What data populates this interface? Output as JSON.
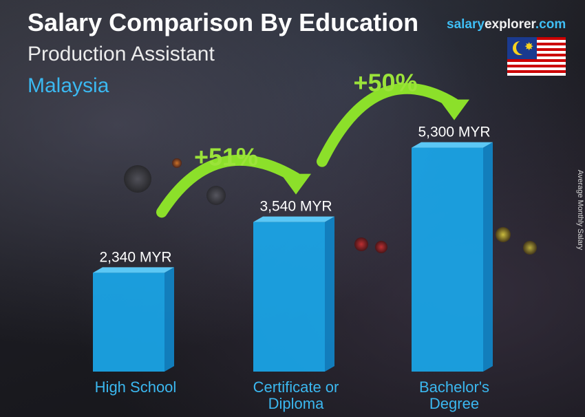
{
  "title": "Salary Comparison By Education",
  "subtitle": "Production Assistant",
  "country": "Malaysia",
  "brand": {
    "part1": "salary",
    "part2": "explorer",
    "part3": ".com"
  },
  "flag_icon": "malaysia-flag-icon",
  "colors": {
    "bar_front": "#1aa7ea",
    "bar_side": "#1183c4",
    "bar_top": "#5fd0ff",
    "arrow_green": "#8ce02a",
    "pct_green": "#9be33a",
    "country_blue": "#3bb8f0"
  },
  "chart_data": {
    "type": "bar",
    "categories": [
      [
        "High School"
      ],
      [
        "Certificate or",
        "Diploma"
      ],
      [
        "Bachelor's",
        "Degree"
      ]
    ],
    "values": [
      2340,
      3540,
      5300
    ],
    "value_labels": [
      "2,340 MYR",
      "3,540 MYR",
      "5,300 MYR"
    ],
    "unit": "MYR",
    "ylabel": "Average Monthly Salary",
    "increases": [
      {
        "from": 0,
        "to": 1,
        "label": "+51%"
      },
      {
        "from": 1,
        "to": 2,
        "label": "+50%"
      }
    ],
    "grid": false,
    "legend": "none"
  }
}
